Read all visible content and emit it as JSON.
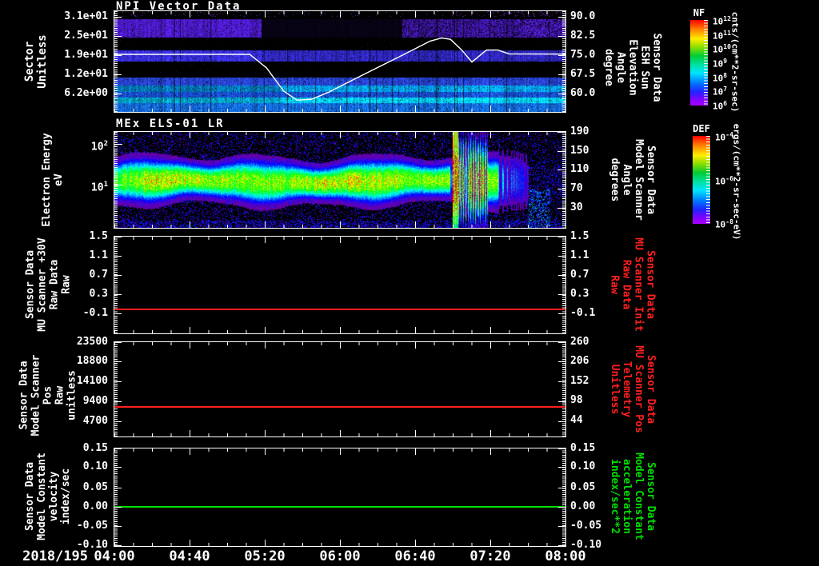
{
  "x_axis": {
    "date": "2018/195",
    "ticks": [
      "04:00",
      "04:40",
      "05:20",
      "06:00",
      "06:40",
      "07:20",
      "08:00"
    ]
  },
  "panels": [
    {
      "title": "NPI Vector Data",
      "left_label": [
        "Sector",
        "Unitless"
      ],
      "left_ticks": [
        "3.1e+01",
        "2.5e+01",
        "1.9e+01",
        "1.2e+01",
        "6.2e+00"
      ],
      "right_ticks": [
        "90.0",
        "82.5",
        "75.0",
        "67.5",
        "60.0"
      ],
      "right_label": [
        "Sensor Data",
        "ESH Sun Elevation",
        "Angle",
        "degree"
      ],
      "colorbar": {
        "title": "NF",
        "base": "10",
        "exps": [
          "12",
          "11",
          "10",
          "9",
          "8",
          "7",
          "6"
        ],
        "unit": "cnts/(cm**2-sr-sec)"
      }
    },
    {
      "title": "MEx ELS-01 LR",
      "left_label": [
        "Electron Energy",
        "eV"
      ],
      "left_ticks": [
        {
          "base": "10",
          "exp": "2"
        },
        {
          "base": "10",
          "exp": "1"
        }
      ],
      "right_ticks": [
        "190",
        "150",
        "110",
        "70",
        "30"
      ],
      "right_label": [
        "Sensor Data",
        "Model Scanner",
        "Angle",
        "degrees"
      ],
      "colorbar": {
        "title": "DEF",
        "base": "10",
        "exps": [
          "-4",
          "-6",
          "-8"
        ],
        "unit": "ergs/(cm**2-sr-sec-eV)"
      }
    },
    {
      "left_label": [
        "Sensor Data",
        "MU Scanner +30V",
        "Raw Data",
        "Raw"
      ],
      "left_ticks": [
        "1.5",
        "1.1",
        "0.7",
        "0.3",
        "-0.1"
      ],
      "right_ticks": [
        "1.5",
        "1.1",
        "0.7",
        "0.3",
        "-0.1"
      ],
      "right_label": [
        "Sensor Data",
        "MU Scanner Init",
        "Raw Data",
        "Raw"
      ],
      "label_color": "#ff2020"
    },
    {
      "left_label": [
        "Sensor Data",
        "Model Scanner Pos",
        "Raw",
        "unitless"
      ],
      "left_ticks": [
        "23500",
        "18800",
        "14100",
        "9400",
        "4700"
      ],
      "right_ticks": [
        "260",
        "206",
        "152",
        "98",
        "44"
      ],
      "right_label": [
        "Sensor Data",
        "MU Scanner Pos",
        "Telemetry",
        "Unitless"
      ],
      "label_color": "#ff2020"
    },
    {
      "left_label": [
        "Sensor Data",
        "Model Constant",
        "velocity",
        "index/sec"
      ],
      "left_ticks": [
        "0.15",
        "0.10",
        "0.05",
        "0.00",
        "-0.05",
        "-0.10"
      ],
      "right_ticks": [
        "0.15",
        "0.10",
        "0.05",
        "0.00",
        "-0.05",
        "-0.10"
      ],
      "right_label": [
        "Sensor Data",
        "Model Constant",
        "acceleration",
        "index/sec**2"
      ],
      "label_color": "#00e000"
    }
  ],
  "chart_data": [
    {
      "panel": 1,
      "type": "heatmap",
      "title": "NPI Vector Data",
      "ylabel": "Sector (Unitless)",
      "yticks": [
        31,
        25,
        19,
        12,
        6.2
      ],
      "x_range": [
        "04:00",
        "08:00"
      ],
      "date": "2018/195",
      "colorbar": {
        "name": "NF",
        "unit": "cnts/(cm**2-sr-sec)",
        "scale": "log",
        "range": [
          1000000.0,
          1000000000000.0
        ]
      },
      "y2": {
        "label": "ESH Sun Elevation Angle (degree)",
        "ticks": [
          90.0,
          82.5,
          75.0,
          67.5,
          60.0
        ]
      },
      "content": "Horizontal sector bands: purple band sectors ~24-29 (dark 05:20-06:30), blue band ~16-20, blue/cyan bands sectors ~1-11 brightening after ~05:30; black gaps between bands",
      "overlay_line": {
        "name": "sun-elevation-angle",
        "color": "#ffffff",
        "units": "degrees vs decimal hours",
        "points": [
          [
            4.0,
            75.3
          ],
          [
            5.2,
            75.3
          ],
          [
            5.35,
            70
          ],
          [
            5.5,
            61
          ],
          [
            5.62,
            57.4
          ],
          [
            5.75,
            57.8
          ],
          [
            5.9,
            60.5
          ],
          [
            6.1,
            65
          ],
          [
            6.35,
            70.5
          ],
          [
            6.6,
            76
          ],
          [
            6.8,
            80.5
          ],
          [
            6.9,
            81.7
          ],
          [
            6.98,
            81.2
          ],
          [
            7.08,
            77
          ],
          [
            7.17,
            72.3
          ],
          [
            7.3,
            77
          ],
          [
            7.4,
            77
          ],
          [
            7.5,
            75.5
          ],
          [
            8.0,
            75.4
          ]
        ]
      }
    },
    {
      "panel": 2,
      "type": "heatmap",
      "title": "MEx ELS-01 LR",
      "ylabel": "Electron Energy (eV)",
      "yscale": "log",
      "yticks": [
        10,
        100
      ],
      "colorbar": {
        "name": "DEF",
        "unit": "ergs/(cm**2-sr-sec-eV)",
        "scale": "log",
        "range": [
          1e-08,
          0.0001
        ]
      },
      "y2": {
        "label": "Model Scanner Angle (degrees)",
        "ticks": [
          190,
          150,
          110,
          70,
          30
        ]
      },
      "content": "Continuous electron band ~6-30 eV with green-yellow core ~10-20 eV from 04:00 to ~06:59; intense red burst 06:59-07:19 spanning ~3-200 eV with vertical striations; decaying green/cyan tail to ~07:40; sparse blue background speckle afterwards"
    },
    {
      "panel": 3,
      "type": "line",
      "ylim_ticks": [
        1.5,
        1.1,
        0.7,
        0.3,
        -0.1
      ],
      "series": [
        {
          "name": "MU Scanner +30V Raw Data",
          "color": "#ff2020",
          "value": 0.0,
          "shape": "constant"
        }
      ]
    },
    {
      "panel": 4,
      "type": "line",
      "ylim_ticks": [
        23500,
        18800,
        14100,
        9400,
        4700
      ],
      "y2_ticks": [
        260,
        206,
        152,
        98,
        44
      ],
      "series": [
        {
          "name": "Model Scanner Pos Raw",
          "color": "#ff2020",
          "value": 8100,
          "shape": "constant"
        }
      ]
    },
    {
      "panel": 5,
      "type": "line",
      "ylim_ticks": [
        0.15,
        0.1,
        0.05,
        0.0,
        -0.05,
        -0.1
      ],
      "series": [
        {
          "name": "Model Constant velocity",
          "color": "#00e000",
          "value": 0.0,
          "shape": "constant"
        }
      ]
    }
  ]
}
